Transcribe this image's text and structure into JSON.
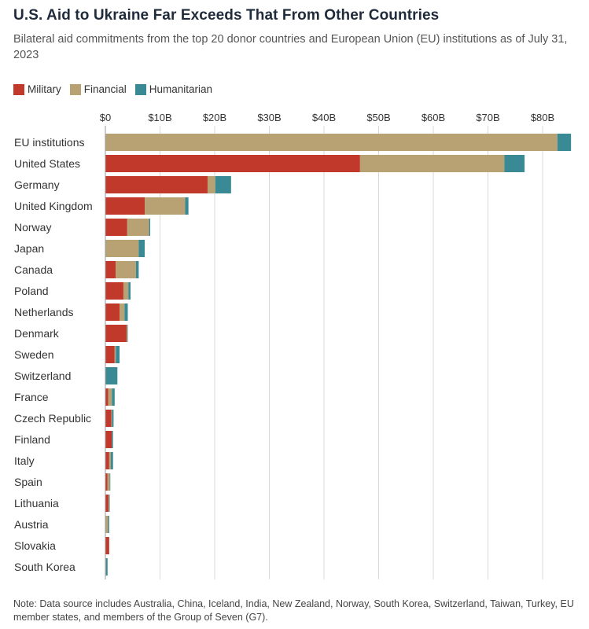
{
  "header": {
    "title": "U.S. Aid to Ukraine Far Exceeds That From Other Countries",
    "subtitle": "Bilateral aid commitments from the top 20 donor countries and European Union (EU) institutions as of July 31, 2023"
  },
  "colors": {
    "military": "#c0392b",
    "financial": "#b8a273",
    "humanitarian": "#3a8a96",
    "axis": "#999999",
    "grid": "#d9d9d9"
  },
  "footer": {
    "note": "Note: Data source includes Australia, China, Iceland, India, New Zealand, Norway, South Korea, Switzerland, Taiwan, Turkey, EU member states, and members of the Group of Seven (G7)."
  },
  "chart_data": {
    "type": "bar",
    "orientation": "horizontal",
    "stacked": true,
    "title": "U.S. Aid to Ukraine Far Exceeds That From Other Countries",
    "subtitle": "Bilateral aid commitments from the top 20 donor countries and European Union (EU) institutions as of July 31, 2023",
    "xlabel": "",
    "ylabel": "",
    "xlim": [
      0,
      85
    ],
    "x_ticks": [
      0,
      10,
      20,
      30,
      40,
      50,
      60,
      70,
      80
    ],
    "x_tick_labels": [
      "$0",
      "$10B",
      "$20B",
      "$30B",
      "$40B",
      "$50B",
      "$60B",
      "$70B",
      "$80B"
    ],
    "x_axis_position": "top",
    "grid": true,
    "legend": "top-left",
    "categories": [
      "EU institutions",
      "United States",
      "Germany",
      "United Kingdom",
      "Norway",
      "Japan",
      "Canada",
      "Poland",
      "Netherlands",
      "Denmark",
      "Sweden",
      "Switzerland",
      "France",
      "Czech Republic",
      "Finland",
      "Italy",
      "Spain",
      "Lithuania",
      "Austria",
      "Slovakia",
      "South Korea"
    ],
    "series": [
      {
        "name": "Military",
        "values": [
          0,
          46.6,
          18.7,
          7.2,
          4.0,
          0,
          1.9,
          3.3,
          2.6,
          3.9,
          1.7,
          0,
          0.5,
          1.1,
          1.2,
          0.7,
          0.4,
          0.6,
          0,
          0.7,
          0
        ]
      },
      {
        "name": "Financial",
        "values": [
          82.7,
          26.4,
          1.4,
          7.4,
          4.0,
          6.1,
          3.7,
          0.9,
          0.9,
          0.1,
          0.2,
          0,
          0.7,
          0.1,
          0,
          0.3,
          0.4,
          0.1,
          0.5,
          0,
          0.1
        ]
      },
      {
        "name": "Humanitarian",
        "values": [
          2.5,
          3.7,
          2.9,
          0.6,
          0.2,
          1.1,
          0.5,
          0.4,
          0.6,
          0.1,
          0.7,
          2.2,
          0.5,
          0.3,
          0.2,
          0.4,
          0.1,
          0.1,
          0.2,
          0,
          0.3
        ]
      }
    ]
  }
}
